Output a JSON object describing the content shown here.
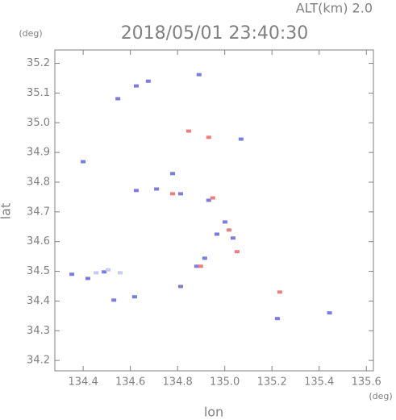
{
  "chart_data": {
    "type": "scatter",
    "title": "2018/05/01 23:40:30",
    "annotation": "ALT(km) 2.0",
    "xlabel": "lon",
    "ylabel": "lat",
    "x_unit": "(deg)",
    "y_unit": "(deg)",
    "xlim": [
      134.28,
      135.63
    ],
    "ylim": [
      34.165,
      35.245
    ],
    "xticks": [
      134.4,
      134.6,
      134.8,
      {
        "value": 135.0,
        "label": "135.0"
      },
      135.2,
      135.4,
      135.6
    ],
    "yticks": [
      34.2,
      34.3,
      34.4,
      34.5,
      34.6,
      34.7,
      34.8,
      34.9,
      {
        "value": 35.0,
        "label": "35.0"
      },
      35.1,
      35.2
    ],
    "series": [
      {
        "color": "#7b7be0",
        "x": [
          134.676,
          134.625,
          134.547,
          134.4,
          134.625,
          134.711,
          134.779,
          134.813,
          134.932,
          135.001,
          135.035,
          134.967,
          134.915,
          134.881,
          134.489,
          134.42,
          134.352,
          134.53,
          134.618,
          134.813,
          135.223,
          135.444,
          135.069,
          134.891
        ],
        "values": [
          35.14,
          35.124,
          35.081,
          34.869,
          34.772,
          34.777,
          34.829,
          34.761,
          34.739,
          34.666,
          34.612,
          34.625,
          34.544,
          34.517,
          34.498,
          34.476,
          34.49,
          34.403,
          34.414,
          34.449,
          34.341,
          34.36,
          34.945,
          35.162
        ]
      },
      {
        "color": "#f07c7c",
        "x": [
          134.932,
          134.779,
          134.949,
          135.018,
          135.052,
          134.898,
          135.233,
          134.847
        ],
        "values": [
          34.951,
          34.761,
          34.747,
          34.639,
          34.566,
          34.517,
          34.43,
          34.972
        ]
      },
      {
        "color": "#c8c8f0",
        "x": [
          134.455,
          134.506,
          134.557
        ],
        "values": [
          34.495,
          34.505,
          34.495
        ]
      }
    ]
  }
}
